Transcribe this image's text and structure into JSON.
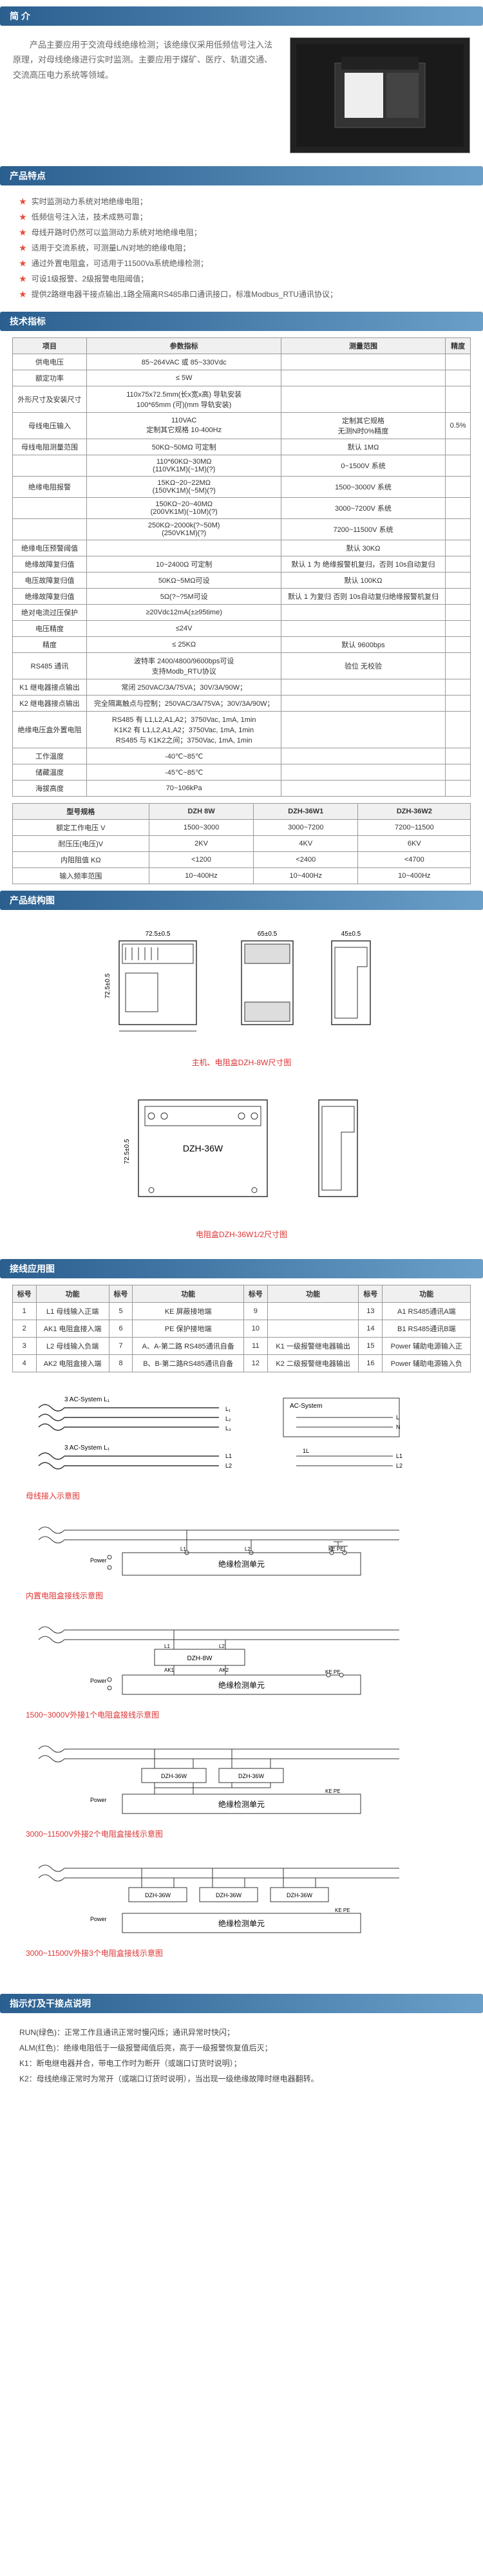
{
  "intro": {
    "header": "简 介",
    "text": "产品主要应用于交流母线绝缘检测；该绝缘仪采用低频信号注入法原理，对母线绝缘进行实时监测。主要应用于媒矿、医疗、轨道交通、交流高压电力系统等领域。"
  },
  "features": {
    "header": "产品特点",
    "items": [
      "实时监测动力系统对地绝缘电阻；",
      "低频信号注入法，技术成熟可靠；",
      "母线开路时仍然可以监测动力系统对地绝缘电阻；",
      "适用于交流系统，可测量L/N对地的绝缘电阻；",
      "通过外置电阻盒，可适用于11500Va系统绝缘检测；",
      "可设1级报警、2级报警电阻阈值；",
      "提供2路继电器干接点输出,1路全隔离RS485串口通讯接口，标准Modbus_RTU通讯协议；"
    ]
  },
  "spec": {
    "header": "技术指标",
    "cols": [
      "项目",
      "参数指标",
      "测量范围",
      "精度"
    ],
    "rows": [
      [
        "供电电压",
        "85~264VAC 或 85~330Vdc",
        "",
        ""
      ],
      [
        "额定功率",
        "≤ 5W",
        "",
        ""
      ],
      [
        "外形尺寸及安装尺寸",
        "110x75x72.5mm(长x宽x高) 导轨安装\n100*65mm (可)(mm 导轨安装)",
        "",
        ""
      ],
      [
        "母线电压输入",
        "110VAC\n定制其它规格 10-400Hz",
        "定制其它规格\n无测N时0%精度",
        "0.5%"
      ],
      [
        "母线电阻测量范围",
        "50KΩ~50MΩ 可定制",
        "默认 1MΩ",
        ""
      ],
      [
        "",
        "110*60KΩ~30MΩ\n(110VK1M)(~1M)(?)",
        "0~1500V 系统",
        ""
      ],
      [
        "绝缘电阻报警",
        "15KΩ~20~22MΩ\n(150VK1M)(~5M)(?)",
        "1500~3000V 系统",
        ""
      ],
      [
        "",
        "150KΩ~20~40MΩ\n(200VK1M)(~10M)(?)",
        "3000~7200V 系统",
        ""
      ],
      [
        "",
        "250KΩ~2000k(?~50M)\n(250VK1M)(?)",
        "7200~11500V 系统",
        ""
      ],
      [
        "绝缘电压预警阈值",
        "",
        "默认 30KΩ",
        ""
      ],
      [
        "绝缘故障复归值",
        "10~2400Ω 可定制",
        "默认 1 为 绝缘报警机复归，否则 10s自动复归",
        ""
      ],
      [
        "电压故障复归值",
        "50KΩ~5MΩ可设",
        "默认 100KΩ",
        ""
      ],
      [
        "绝缘故障复归值",
        "5Ω(?~?5M可设",
        "默认 1 为复归 否则 10s自动复归绝缘报警机复归",
        ""
      ],
      [
        "绝对电流过压保护",
        "≥20Vdc12mA(±≥95time)",
        "",
        ""
      ],
      [
        "电压精度",
        "≤24V",
        "",
        ""
      ],
      [
        "精度",
        "≤ 25KΩ",
        "默认 9600bps",
        ""
      ],
      [
        "RS485 通讯",
        "波特率 2400/4800/9600bps可设\n支持Modb_RTU协议",
        "验位 无校验",
        ""
      ],
      [
        "K1 继电器接点输出",
        "常闭 250VAC/3A/75VA；30V/3A/90W；",
        "",
        ""
      ],
      [
        "K2 继电器接点输出",
        "完全隔离触点与控制；250VAC/3A/75VA；30V/3A/90W；",
        "",
        ""
      ],
      [
        "绝缘电压盒外置电阻",
        "RS485 有 L1,L2,A1,A2；3750Vac, 1mA, 1min\nK1K2 有 L1,L2,A1,A2；3750Vac, 1mA, 1min\nRS485 与 K1K2之间；3750Vac, 1mA, 1min",
        "",
        ""
      ],
      [
        "工作温度",
        "-40℃~85℃",
        "",
        ""
      ],
      [
        "储藏温度",
        "-45℃~85℃",
        "",
        ""
      ],
      [
        "海拔高度",
        "70~106kPa",
        "",
        ""
      ]
    ],
    "model_cols": [
      "型号规格",
      "DZH 8W",
      "DZH-36W1",
      "DZH-36W2"
    ],
    "model_rows": [
      [
        "额定工作电压 V",
        "1500~3000",
        "3000~7200",
        "7200~11500"
      ],
      [
        "耐压压(电压)V",
        "2KV",
        "4KV",
        "6KV"
      ],
      [
        "内阻阻值 KΩ",
        "<1200",
        "<2400",
        "<4700"
      ],
      [
        "输入频率范围",
        "10~400Hz",
        "10~400Hz",
        "10~400Hz"
      ]
    ]
  },
  "structure": {
    "header": "产品结构图",
    "caption1": "主机、电阻盒DZH-8W尺寸图",
    "caption2": "电阻盒DZH-36W1/2尺寸图",
    "dims": {
      "w1": "72.5±0.5",
      "h1": "72.5±0.5",
      "w2": "65±0.5",
      "w3": "45±0.5",
      "box2_label": "DZH-36W",
      "box2_w": "72.5±0.5"
    }
  },
  "wiring": {
    "header": "接线应用图",
    "cols": [
      "标号",
      "功能",
      "标号",
      "功能",
      "标号",
      "功能",
      "标号",
      "功能"
    ],
    "rows": [
      [
        "1",
        "L1 母线输入正端",
        "5",
        "KE 屏蔽接地端",
        "9",
        "",
        "13",
        "A1 RS485通讯A端"
      ],
      [
        "2",
        "AK1 电阻盒接入端",
        "6",
        "PE 保护接地端",
        "10",
        "",
        "14",
        "B1 RS485通讯B端"
      ],
      [
        "3",
        "L2 母线输入负端",
        "7",
        "A、A-第二路 RS485通讯自备",
        "11",
        "K1 一级报警继电器输出",
        "15",
        "Power 辅助电源输入正"
      ],
      [
        "4",
        "AK2 电阻盒接入端",
        "8",
        "B、B-第二路RS485通讯自备",
        "12",
        "K2 二级报警继电器输出",
        "16",
        "Power 辅助电源输入负"
      ]
    ],
    "diag_labels": {
      "d1": "母线接入示意图",
      "d2": "内置电阻盒接线示意图",
      "d3": "1500~3000V外接1个电阻盒接线示意图",
      "d4": "3000~11500V外接2个电阻盒接线示意图",
      "d5": "3000~11500V外接3个电阻盒接线示意图",
      "system_label": "3 AC-System L₁",
      "ac_system": "AC-System",
      "unit": "绝缘检测单元",
      "dzh8w": "DZH-8W",
      "dzh36w": "DZH-36W",
      "terms": [
        "Power",
        "L1",
        "L2",
        "AK1",
        "AK2",
        "KE",
        "PE"
      ]
    }
  },
  "led": {
    "header": "指示灯及干接点说明",
    "lines": [
      "RUN(绿色)：正常工作且通讯正常时慢闪烁；通讯异常时快闪；",
      "ALM(红色)：绝缘电阻低于一级报警阈值后亮，高于一级报警恢复值后灭；",
      "K1：断电继电器并合，带电工作时为断开（或端口订货时说明）；",
      "K2：母线绝缘正常时为常开（或端口订货时说明），当出现一级绝缘故障时继电器翻转。"
    ]
  },
  "colors": {
    "header_bg": "#2a5f8f",
    "header_bg2": "#6a9fc9",
    "red": "#d33",
    "border": "#999"
  }
}
